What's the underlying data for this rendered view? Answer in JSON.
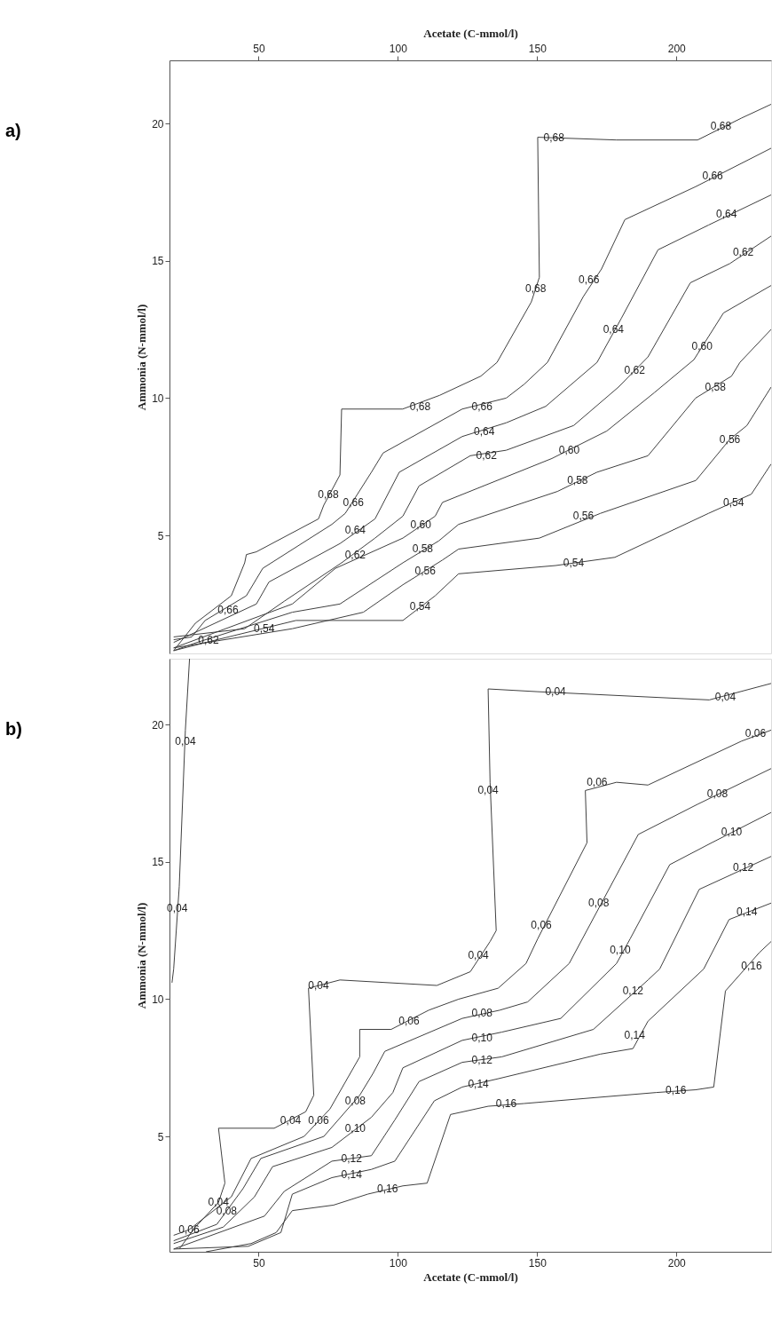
{
  "chart_data": [
    {
      "type": "line",
      "xlabel": "Acetate (C-mmol/l)",
      "ylabel": "Ammonia (N-mmol/l)",
      "xlim": [
        18,
        234
      ],
      "xticks": [
        50,
        100,
        150,
        200
      ],
      "ylim": [
        0.7,
        22.3
      ],
      "yticks": [
        5,
        10,
        15,
        20
      ],
      "series": [
        {
          "color": "#404040",
          "x": [
            234,
            223.4,
            207.6,
            178.5,
            150.2,
            150.8,
            147.9,
            135.6,
            129.8,
            115.0,
            101.7,
            79.8,
            79.2,
            73.4,
            71.5,
            49.2,
            45.6,
            45.0,
            40.2,
            27.3,
            19.5
          ],
          "values": [
            20.7,
            20.2,
            19.4,
            19.4,
            19.5,
            14.4,
            13.5,
            11.3,
            10.8,
            10.1,
            9.6,
            9.6,
            7.2,
            6.1,
            5.6,
            4.4,
            4.3,
            4.0,
            2.8,
            1.8,
            0.8
          ]
        },
        {
          "color": "#404040",
          "x": [
            234,
            206.9,
            181.5,
            173.1,
            166.6,
            153.7,
            145.3,
            138.9,
            123.1,
            94.7,
            90.5,
            81.1,
            76.3,
            51.5,
            45.6,
            30.8,
            26.0,
            19.5
          ],
          "values": [
            19.1,
            17.7,
            16.5,
            14.7,
            13.7,
            11.3,
            10.5,
            10.0,
            9.6,
            8.0,
            7.3,
            5.8,
            5.4,
            3.8,
            2.8,
            1.9,
            1.3,
            1.2
          ]
        },
        {
          "color": "#404040",
          "x": [
            234,
            211.5,
            193.4,
            180.2,
            171.5,
            153.1,
            138.9,
            123.1,
            100.5,
            91.8,
            79.2,
            53.7,
            49.2,
            19.5
          ],
          "values": [
            17.4,
            16.3,
            15.4,
            12.9,
            11.3,
            9.7,
            9.1,
            8.6,
            7.3,
            5.6,
            4.7,
            3.3,
            2.5,
            1.1
          ]
        },
        {
          "color": "#404040",
          "x": [
            234,
            219.2,
            205,
            189.8,
            179.2,
            163.1,
            138.9,
            126,
            107.6,
            101.8,
            91.8,
            79.8,
            59.2,
            45,
            19.5
          ],
          "values": [
            15.9,
            14.9,
            14.2,
            11.5,
            10.4,
            9.0,
            8.1,
            7.9,
            6.8,
            5.7,
            4.9,
            4.0,
            2.6,
            1.6,
            1.3
          ]
        },
        {
          "color": "#404040",
          "x": [
            234,
            216.9,
            206.3,
            192.1,
            175,
            155.3,
            116,
            113.4,
            101.8,
            77.6,
            62.1,
            19.5
          ],
          "values": [
            14.1,
            13.1,
            11.4,
            10.2,
            8.8,
            7.8,
            6.2,
            5.7,
            4.9,
            3.8,
            2.5,
            0.9
          ]
        },
        {
          "color": "#404040",
          "x": [
            234,
            222.8,
            219.8,
            206.9,
            189.8,
            171.5,
            157.3,
            121.8,
            114.7,
            101.8,
            79.2,
            62.1,
            27.9,
            19.5
          ],
          "values": [
            12.5,
            11.3,
            10.8,
            10.0,
            7.9,
            7.3,
            6.6,
            5.4,
            4.8,
            4.0,
            2.5,
            2.2,
            1.1,
            0.8
          ]
        },
        {
          "color": "#404040",
          "x": [
            234,
            225.3,
            219.2,
            207,
            172.7,
            150.8,
            121.8,
            116,
            101.8,
            87.6,
            62.1,
            19.5
          ],
          "values": [
            10.4,
            9.0,
            8.5,
            7.0,
            5.8,
            4.9,
            4.5,
            4.1,
            3.2,
            2.2,
            1.6,
            0.9
          ]
        },
        {
          "color": "#404040",
          "x": [
            234,
            226.9,
            211.5,
            177.9,
            156.6,
            121.8,
            113.4,
            101.8,
            63.4,
            31.1,
            19.5
          ],
          "values": [
            7.6,
            6.5,
            5.8,
            4.2,
            3.9,
            3.6,
            2.8,
            1.9,
            1.9,
            1.1,
            0.8
          ]
        }
      ],
      "annotations": [
        "a)",
        {
          "text": "0,68",
          "x": 156,
          "y": 19.5
        },
        {
          "text": "0,68",
          "x": 216,
          "y": 19.9
        },
        {
          "text": "0,68",
          "x": 149.5,
          "y": 14.0
        },
        {
          "text": "0,68",
          "x": 108,
          "y": 9.7
        },
        {
          "text": "0,68",
          "x": 75,
          "y": 6.5
        },
        {
          "text": "0,66",
          "x": 213,
          "y": 18.1
        },
        {
          "text": "0,66",
          "x": 168.6,
          "y": 14.3
        },
        {
          "text": "0,66",
          "x": 130.2,
          "y": 9.7
        },
        {
          "text": "0,66",
          "x": 84,
          "y": 6.2
        },
        {
          "text": "0,66",
          "x": 39,
          "y": 2.3
        },
        {
          "text": "0,64",
          "x": 218,
          "y": 16.7
        },
        {
          "text": "0,64",
          "x": 177.4,
          "y": 12.5
        },
        {
          "text": "0,64",
          "x": 131,
          "y": 8.8
        },
        {
          "text": "0,64",
          "x": 84.7,
          "y": 5.2
        },
        {
          "text": "0,62",
          "x": 224,
          "y": 15.3
        },
        {
          "text": "0,62",
          "x": 185,
          "y": 11.0
        },
        {
          "text": "0,62",
          "x": 131.8,
          "y": 7.9
        },
        {
          "text": "0,62",
          "x": 84.7,
          "y": 4.3
        },
        {
          "text": "0,62",
          "x": 32,
          "y": 1.2
        },
        {
          "text": "0,60",
          "x": 209.2,
          "y": 11.9
        },
        {
          "text": "0,60",
          "x": 161.5,
          "y": 8.1
        },
        {
          "text": "0,60",
          "x": 108.2,
          "y": 5.4
        },
        {
          "text": "0,58",
          "x": 214,
          "y": 10.4
        },
        {
          "text": "0,58",
          "x": 164.5,
          "y": 7.0
        },
        {
          "text": "0,58",
          "x": 108.9,
          "y": 4.5
        },
        {
          "text": "0,56",
          "x": 219.2,
          "y": 8.5
        },
        {
          "text": "0,56",
          "x": 166.6,
          "y": 5.7
        },
        {
          "text": "0,56",
          "x": 109.8,
          "y": 3.7
        },
        {
          "text": "0,54",
          "x": 220.5,
          "y": 6.2
        },
        {
          "text": "0,54",
          "x": 163.1,
          "y": 4.0
        },
        {
          "text": "0,54",
          "x": 108,
          "y": 2.4
        },
        {
          "text": "0,54",
          "x": 52,
          "y": 1.6
        }
      ]
    },
    {
      "type": "line",
      "xlabel": "Acetate (C-mmol/l)",
      "ylabel": "Ammonia (N-mmol/l)",
      "xlim": [
        18,
        234
      ],
      "xticks": [
        50,
        100,
        150,
        200
      ],
      "ylim": [
        0.8,
        22.4
      ],
      "yticks": [
        5,
        10,
        15,
        20
      ],
      "series": [
        {
          "color": "#404040",
          "x": [
            25.2,
            23.7,
            21.5,
            19.5,
            18.9
          ],
          "values": [
            22.4,
            19.8,
            14.1,
            11.1,
            10.6
          ]
        },
        {
          "color": "#404040",
          "x": [
            234,
            211.8,
            150.2,
            132.4,
            133.1,
            135.3,
            133.1,
            126,
            114.0,
            79.2,
            67.9,
            69.8,
            66.9,
            55.6,
            35.6,
            37.9,
            35.6,
            27.3,
            21.5
          ],
          "values": [
            21.5,
            20.9,
            21.2,
            21.3,
            17.9,
            12.5,
            12.1,
            11.0,
            10.5,
            10.7,
            10.4,
            6.5,
            5.9,
            5.3,
            5.3,
            3.3,
            2.6,
            1.7,
            0.9
          ]
        },
        {
          "color": "#404040",
          "x": [
            234,
            223.4,
            189.8,
            178.5,
            167.3,
            167.9,
            150.2,
            146,
            136,
            121.8,
            111.1,
            97.6,
            86.3,
            86.3,
            75.6,
            66.3,
            47.3,
            40.2,
            25,
            19.5
          ],
          "values": [
            19.8,
            19.4,
            17.8,
            17.9,
            17.6,
            15.7,
            12.2,
            11.3,
            10.4,
            10.0,
            9.6,
            8.9,
            8.9,
            7.9,
            6.0,
            5.0,
            4.2,
            2.8,
            1.6,
            1.4
          ]
        },
        {
          "color": "#404040",
          "x": [
            234,
            207.6,
            186.3,
            161.5,
            146.6,
            136.6,
            123.1,
            95.3,
            91.1,
            86.3,
            73.4,
            50.8,
            44.4,
            35,
            19.5
          ],
          "values": [
            18.4,
            17.1,
            16.0,
            11.3,
            9.9,
            9.6,
            9.3,
            8.1,
            7.3,
            6.5,
            5.0,
            4.2,
            3.1,
            1.8,
            1.2
          ]
        },
        {
          "color": "#404040",
          "x": [
            234,
            212.7,
            197.6,
            183.4,
            178.5,
            158.5,
            137.3,
            123.1,
            101.8,
            98.2,
            90.5,
            76.3,
            55,
            48.5,
            37.3,
            19.5
          ],
          "values": [
            16.8,
            15.7,
            14.9,
            12.2,
            11.3,
            9.3,
            8.8,
            8.5,
            7.5,
            6.6,
            5.7,
            4.6,
            3.9,
            2.8,
            1.7,
            1.1
          ]
        },
        {
          "color": "#404040",
          "x": [
            234,
            208.2,
            194,
            189.8,
            170.2,
            137.3,
            123.1,
            107.6,
            98.9,
            90.5,
            76.3,
            59.2,
            52.1,
            19.5
          ],
          "values": [
            15.2,
            14.0,
            11.1,
            10.7,
            8.9,
            7.9,
            7.7,
            7.0,
            5.6,
            4.3,
            4.1,
            3.0,
            2.1,
            0.9
          ]
        },
        {
          "color": "#404040",
          "x": [
            234,
            218.9,
            209.8,
            189.8,
            184.4,
            172.7,
            135.9,
            123.1,
            113.1,
            98.9,
            90.5,
            76.3,
            62.1,
            58,
            46.3,
            19.5
          ],
          "values": [
            13.5,
            12.9,
            11.1,
            9.2,
            8.2,
            8.0,
            7.1,
            6.8,
            6.3,
            4.1,
            3.8,
            3.5,
            2.9,
            1.5,
            1.0,
            0.9
          ]
        },
        {
          "color": "#404040",
          "x": [
            234,
            229.8,
            217.6,
            213.4,
            206.9,
            192.7,
            145.3,
            132.4,
            118.9,
            110.5,
            101.8,
            89.2,
            76.9,
            62.1,
            56.3,
            47.3,
            31.1
          ],
          "values": [
            12.1,
            11.7,
            10.3,
            6.8,
            6.7,
            6.6,
            6.2,
            6.1,
            5.8,
            3.3,
            3.2,
            2.9,
            2.5,
            2.3,
            1.5,
            1.1,
            0.8
          ]
        }
      ],
      "annotations": [
        "b)",
        {
          "text": "0,04",
          "x": 23.7,
          "y": 19.4
        },
        {
          "text": "0,04",
          "x": 20.8,
          "y": 13.3
        },
        {
          "text": "0,04",
          "x": 217.6,
          "y": 21.0
        },
        {
          "text": "0,04",
          "x": 156.6,
          "y": 21.2
        },
        {
          "text": "0,04",
          "x": 132.4,
          "y": 17.6
        },
        {
          "text": "0,04",
          "x": 128.9,
          "y": 11.6
        },
        {
          "text": "0,04",
          "x": 71.5,
          "y": 10.5
        },
        {
          "text": "0,04",
          "x": 61.5,
          "y": 5.6
        },
        {
          "text": "0,04",
          "x": 35.6,
          "y": 2.6
        },
        {
          "text": "0,06",
          "x": 228.4,
          "y": 19.7
        },
        {
          "text": "0,06",
          "x": 171.5,
          "y": 17.9
        },
        {
          "text": "0,06",
          "x": 151.5,
          "y": 12.7
        },
        {
          "text": "0,06",
          "x": 104,
          "y": 9.2
        },
        {
          "text": "0,06",
          "x": 71.5,
          "y": 5.6
        },
        {
          "text": "0,06",
          "x": 25,
          "y": 1.6
        },
        {
          "text": "0,08",
          "x": 214.7,
          "y": 17.5
        },
        {
          "text": "0,08",
          "x": 172.1,
          "y": 13.5
        },
        {
          "text": "0,08",
          "x": 130.2,
          "y": 9.5
        },
        {
          "text": "0,08",
          "x": 84.7,
          "y": 6.3
        },
        {
          "text": "0,08",
          "x": 38.5,
          "y": 2.3
        },
        {
          "text": "0,10",
          "x": 219.8,
          "y": 16.1
        },
        {
          "text": "0,10",
          "x": 179.8,
          "y": 11.8
        },
        {
          "text": "0,10",
          "x": 130.2,
          "y": 8.6
        },
        {
          "text": "0,10",
          "x": 84.7,
          "y": 5.3
        },
        {
          "text": "0,12",
          "x": 224,
          "y": 14.8
        },
        {
          "text": "0,12",
          "x": 184.4,
          "y": 10.3
        },
        {
          "text": "0,12",
          "x": 130.2,
          "y": 7.8
        },
        {
          "text": "0,12",
          "x": 83.4,
          "y": 4.2
        },
        {
          "text": "0,14",
          "x": 225.3,
          "y": 13.2
        },
        {
          "text": "0,14",
          "x": 185,
          "y": 8.7
        },
        {
          "text": "0,14",
          "x": 128.9,
          "y": 6.9
        },
        {
          "text": "0,14",
          "x": 83.4,
          "y": 3.6
        },
        {
          "text": "0,16",
          "x": 227,
          "y": 11.2
        },
        {
          "text": "0,16",
          "x": 199.8,
          "y": 6.7
        },
        {
          "text": "0,16",
          "x": 138.9,
          "y": 6.2
        },
        {
          "text": "0,16",
          "x": 96.3,
          "y": 3.1
        }
      ]
    }
  ]
}
